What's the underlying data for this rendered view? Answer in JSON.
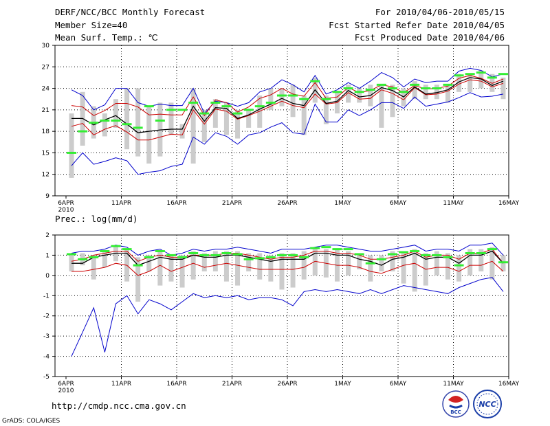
{
  "header": {
    "title": "DERF/NCC/BCC Monthly Forecast",
    "member_size": "Member Size=40",
    "variable": "Mean Surf. Temp.: ℃",
    "period": "For 2010/04/06-2010/05/15",
    "start_date": "Fcst Started Refer Date 2010/04/05",
    "produced_date": "Fcst Produced Date 2010/04/06"
  },
  "footer": {
    "url": "http://cmdp.ncc.cma.gov.cn",
    "credit": "GrADS: COLA/IGES",
    "logo_bcc": "BCC",
    "logo_ncc": "NCC"
  },
  "colors": {
    "spread": "#cccccc",
    "obs": "#33ee33",
    "mean": "#000000",
    "inner": "#cc0000",
    "outer": "#0000cc"
  },
  "chart_data": [
    {
      "type": "line",
      "title": "Mean Surf. Temp.: ℃",
      "xlabel": "",
      "ylabel": "",
      "ylim": [
        9,
        30
      ],
      "yticks": [
        9,
        12,
        15,
        18,
        21,
        24,
        27,
        30
      ],
      "xticks": [
        "6APR",
        "11APR",
        "16APR",
        "21APR",
        "26APR",
        "1MAY",
        "6MAY",
        "11MAY",
        "16MAY"
      ],
      "xtick_days": [
        0,
        5,
        10,
        15,
        20,
        25,
        30,
        35,
        40
      ],
      "year_label": "2010",
      "grid": true,
      "x_days": [
        0,
        1,
        2,
        3,
        4,
        5,
        6,
        7,
        8,
        9,
        10,
        11,
        12,
        13,
        14,
        15,
        16,
        17,
        18,
        19,
        20,
        21,
        22,
        23,
        24,
        25,
        26,
        27,
        28,
        29,
        30,
        31,
        32,
        33,
        34,
        35,
        36,
        37,
        38,
        39
      ],
      "series": [
        {
          "name": "max",
          "values": [
            23.8,
            23.0,
            21.0,
            21.7,
            24.0,
            24.0,
            22.0,
            21.5,
            21.8,
            21.6,
            21.6,
            24.0,
            20.5,
            22.2,
            22.0,
            21.5,
            22.0,
            23.5,
            24.0,
            25.2,
            24.5,
            23.5,
            25.8,
            23.2,
            23.8,
            24.8,
            24.0,
            25.0,
            26.2,
            25.5,
            24.2,
            25.3,
            24.8,
            25.0,
            25.0,
            26.4,
            26.8,
            26.5,
            25.6,
            26.0
          ]
        },
        {
          "name": "upper",
          "values": [
            21.6,
            21.4,
            20.2,
            20.9,
            21.9,
            21.9,
            21.4,
            20.3,
            20.4,
            20.3,
            20.3,
            22.8,
            20.2,
            22.4,
            22.0,
            20.7,
            21.4,
            22.6,
            23.1,
            24.0,
            23.2,
            22.9,
            24.8,
            22.6,
            22.8,
            24.1,
            23.4,
            23.7,
            24.5,
            24.2,
            23.4,
            24.4,
            23.9,
            24.0,
            24.3,
            25.4,
            25.8,
            25.4,
            24.7,
            25.3
          ]
        },
        {
          "name": "mean",
          "values": [
            19.8,
            19.8,
            18.9,
            19.6,
            20.2,
            19.0,
            17.8,
            18.0,
            18.2,
            18.3,
            18.3,
            21.5,
            19.4,
            21.3,
            21.2,
            19.8,
            20.3,
            21.1,
            21.8,
            22.6,
            21.9,
            21.6,
            23.8,
            21.9,
            22.2,
            23.7,
            22.8,
            23.0,
            24.1,
            23.7,
            22.8,
            24.2,
            23.2,
            23.4,
            23.8,
            24.9,
            25.5,
            25.3,
            24.4,
            25.0
          ]
        },
        {
          "name": "lower",
          "values": [
            18.7,
            19.1,
            17.5,
            18.3,
            18.8,
            17.9,
            16.8,
            16.8,
            17.2,
            17.6,
            17.5,
            21.0,
            19.0,
            21.1,
            20.8,
            19.7,
            20.2,
            20.8,
            21.5,
            22.2,
            21.6,
            21.3,
            23.2,
            21.8,
            22.0,
            23.4,
            22.5,
            22.6,
            23.8,
            23.3,
            22.4,
            24.1,
            23.1,
            23.2,
            23.6,
            24.6,
            25.2,
            25.0,
            24.2,
            24.7
          ]
        },
        {
          "name": "min",
          "values": [
            13.2,
            15.0,
            13.4,
            13.8,
            14.3,
            13.9,
            12.0,
            12.3,
            12.5,
            13.1,
            13.4,
            17.2,
            16.2,
            17.8,
            17.3,
            16.2,
            17.5,
            17.8,
            18.6,
            19.2,
            17.8,
            17.6,
            21.8,
            19.3,
            19.3,
            21.0,
            20.2,
            21.0,
            22.0,
            22.0,
            21.2,
            22.8,
            21.5,
            21.8,
            22.1,
            22.7,
            23.4,
            22.8,
            22.9,
            23.2
          ]
        },
        {
          "name": "spread_low",
          "values": [
            11.5,
            16.0,
            17.0,
            17.3,
            18.5,
            15.5,
            14.5,
            13.5,
            14.5,
            17.5,
            17.0,
            13.5,
            16.5,
            18.5,
            17.5,
            17.0,
            18.5,
            18.5,
            21.0,
            21.5,
            20.0,
            17.5,
            22.0,
            19.0,
            20.5,
            22.0,
            22.0,
            21.5,
            18.5,
            20.0,
            21.5,
            22.5,
            22.5,
            22.5,
            22.0,
            23.5,
            23.5,
            24.0,
            23.5,
            22.5
          ]
        },
        {
          "name": "spread_high",
          "values": [
            20.5,
            23.5,
            21.5,
            20.5,
            22.5,
            24.0,
            24.0,
            21.5,
            22.0,
            22.0,
            19.0,
            24.0,
            21.0,
            22.5,
            22.0,
            21.0,
            21.0,
            23.0,
            24.0,
            24.0,
            24.5,
            23.0,
            25.5,
            23.0,
            23.5,
            24.5,
            24.0,
            24.5,
            24.5,
            24.5,
            24.0,
            25.0,
            24.5,
            24.5,
            24.5,
            26.0,
            26.0,
            26.5,
            26.0,
            25.5
          ]
        },
        {
          "name": "observed",
          "values": [
            15.0,
            18.0,
            19.2,
            19.5,
            19.5,
            19.0,
            18.5,
            21.5,
            19.5,
            21.0,
            21.0,
            22.0,
            20.5,
            22.0,
            21.5,
            20.5,
            21.0,
            21.5,
            22.0,
            23.0,
            23.0,
            22.5,
            25.0,
            22.5,
            23.5,
            24.0,
            23.5,
            23.8,
            24.5,
            24.0,
            23.5,
            24.5,
            24.0,
            24.0,
            24.5,
            25.8,
            26.0,
            26.2,
            25.5,
            26.0
          ]
        }
      ]
    },
    {
      "type": "line",
      "title": "Prec.: log(mm/d)",
      "xlabel": "",
      "ylabel": "",
      "ylim": [
        -5,
        2
      ],
      "yticks": [
        -5,
        -4,
        -3,
        -2,
        -1,
        0,
        1,
        2
      ],
      "xticks": [
        "6APR",
        "11APR",
        "16APR",
        "21APR",
        "26APR",
        "1MAY",
        "6MAY",
        "11MAY",
        "16MAY"
      ],
      "xtick_days": [
        0,
        5,
        10,
        15,
        20,
        25,
        30,
        35,
        40
      ],
      "year_label": "2010",
      "grid": true,
      "x_days": [
        0,
        1,
        2,
        3,
        4,
        5,
        6,
        7,
        8,
        9,
        10,
        11,
        12,
        13,
        14,
        15,
        16,
        17,
        18,
        19,
        20,
        21,
        22,
        23,
        24,
        25,
        26,
        27,
        28,
        29,
        30,
        31,
        32,
        33,
        34,
        35,
        36,
        37,
        38,
        39
      ],
      "series": [
        {
          "name": "max",
          "values": [
            1.1,
            1.2,
            1.2,
            1.3,
            1.5,
            1.4,
            1.0,
            1.2,
            1.3,
            1.0,
            1.1,
            1.3,
            1.2,
            1.3,
            1.3,
            1.4,
            1.3,
            1.2,
            1.1,
            1.3,
            1.3,
            1.3,
            1.4,
            1.5,
            1.5,
            1.4,
            1.3,
            1.2,
            1.2,
            1.3,
            1.4,
            1.5,
            1.2,
            1.3,
            1.3,
            1.2,
            1.5,
            1.5,
            1.6,
            1.0
          ]
        },
        {
          "name": "upper",
          "values": [
            0.7,
            0.8,
            1.0,
            1.1,
            1.2,
            1.2,
            0.7,
            0.9,
            1.0,
            0.9,
            0.9,
            1.0,
            1.0,
            1.0,
            1.1,
            1.1,
            1.0,
            0.9,
            0.8,
            0.9,
            0.9,
            1.0,
            1.2,
            1.2,
            1.1,
            1.1,
            1.0,
            0.8,
            0.8,
            0.9,
            1.0,
            1.2,
            0.9,
            1.0,
            1.0,
            0.8,
            1.1,
            1.1,
            1.3,
            0.6
          ]
        },
        {
          "name": "mean",
          "values": [
            0.6,
            0.6,
            0.9,
            1.0,
            1.1,
            1.1,
            0.5,
            0.7,
            0.9,
            0.8,
            0.8,
            1.0,
            0.9,
            0.9,
            1.0,
            1.0,
            0.9,
            0.8,
            0.7,
            0.8,
            0.8,
            0.8,
            1.1,
            1.1,
            1.0,
            1.0,
            0.8,
            0.7,
            0.5,
            0.8,
            0.9,
            1.1,
            0.8,
            0.9,
            0.9,
            0.6,
            1.0,
            1.0,
            1.2,
            0.6
          ]
        },
        {
          "name": "lower",
          "values": [
            0.2,
            0.2,
            0.3,
            0.4,
            0.6,
            0.5,
            0.0,
            0.2,
            0.5,
            0.2,
            0.4,
            0.6,
            0.4,
            0.5,
            0.6,
            0.5,
            0.4,
            0.3,
            0.3,
            0.3,
            0.3,
            0.4,
            0.7,
            0.6,
            0.5,
            0.5,
            0.4,
            0.2,
            0.1,
            0.3,
            0.5,
            0.6,
            0.3,
            0.4,
            0.4,
            0.2,
            0.5,
            0.5,
            0.7,
            0.2
          ]
        },
        {
          "name": "min",
          "values": [
            -4.0,
            -2.8,
            -1.6,
            -3.8,
            -1.4,
            -1.0,
            -1.9,
            -1.2,
            -1.4,
            -1.7,
            -1.3,
            -0.9,
            -1.1,
            -1.0,
            -1.1,
            -1.0,
            -1.2,
            -1.1,
            -1.1,
            -1.2,
            -1.5,
            -0.8,
            -0.7,
            -0.8,
            -0.7,
            -0.8,
            -0.9,
            -0.7,
            -0.9,
            -0.7,
            -0.5,
            -0.6,
            -0.7,
            -0.8,
            -0.9,
            -0.6,
            -0.4,
            -0.2,
            -0.1,
            -0.8
          ]
        },
        {
          "name": "spread_low",
          "values": [
            0.2,
            0.5,
            -0.2,
            0.4,
            0.7,
            -0.3,
            -1.3,
            0.2,
            -0.5,
            -0.3,
            -0.6,
            -0.2,
            0.2,
            0.2,
            -0.3,
            -0.5,
            0.2,
            -0.2,
            -0.3,
            -0.7,
            -0.6,
            -0.2,
            0.0,
            -0.1,
            -0.3,
            0.0,
            0.3,
            -0.3,
            0.2,
            0.2,
            -0.4,
            -0.8,
            -0.5,
            0.0,
            -0.2,
            -0.3,
            0.0,
            0.2,
            -0.2,
            0.2
          ]
        },
        {
          "name": "spread_high",
          "values": [
            1.0,
            1.1,
            1.0,
            1.2,
            1.4,
            1.3,
            0.9,
            1.0,
            1.2,
            1.0,
            1.0,
            1.2,
            1.1,
            1.2,
            1.2,
            1.2,
            1.1,
            1.1,
            1.0,
            1.1,
            1.1,
            1.2,
            1.3,
            1.3,
            1.3,
            1.2,
            1.1,
            1.0,
            1.0,
            1.2,
            1.2,
            1.3,
            1.1,
            1.2,
            1.1,
            1.0,
            1.3,
            1.3,
            1.4,
            1.0
          ]
        },
        {
          "name": "observed",
          "values": [
            1.05,
            0.8,
            0.9,
            1.2,
            1.45,
            1.3,
            0.5,
            0.9,
            1.2,
            1.0,
            0.9,
            1.1,
            1.0,
            1.0,
            1.1,
            1.05,
            0.8,
            0.85,
            0.9,
            1.0,
            1.0,
            0.9,
            1.35,
            1.4,
            1.3,
            1.3,
            1.05,
            0.6,
            0.8,
            1.05,
            1.15,
            1.2,
            1.0,
            1.0,
            0.9,
            0.5,
            1.1,
            1.1,
            1.3,
            0.65
          ]
        }
      ]
    }
  ]
}
